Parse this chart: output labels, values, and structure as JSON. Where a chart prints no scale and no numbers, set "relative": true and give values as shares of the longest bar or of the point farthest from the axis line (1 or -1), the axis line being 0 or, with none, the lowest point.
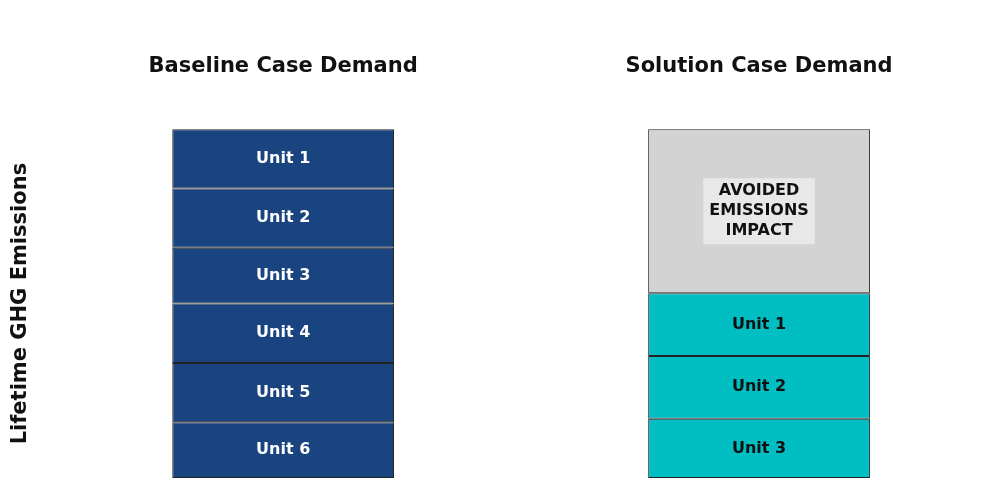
{
  "chart_data": {
    "type": "bar",
    "stacked": true,
    "relative": true,
    "ylabel": "Lifetime GHG Emissions",
    "categories": [
      "Baseline Case Demand",
      "Solution Case Demand"
    ],
    "series": [
      {
        "values": [
          0.16,
          0.17
        ],
        "colors": [
          "#1a4480",
          "#00bec2"
        ]
      },
      {
        "values": [
          0.17,
          0.18
        ],
        "colors": [
          "#1a4480",
          "#00bec2"
        ]
      },
      {
        "values": [
          0.17,
          0.18
        ],
        "colors": [
          "#1a4480",
          "#00bec2"
        ]
      },
      {
        "values": [
          0.16,
          0.47
        ],
        "colors": [
          "#1a4480",
          "#d3d3d3"
        ]
      },
      {
        "values": [
          0.17,
          null
        ],
        "colors": [
          "#1a4480",
          "#1a4480"
        ]
      },
      {
        "values": [
          0.17,
          null
        ],
        "colors": [
          "#1a4480",
          "#1a4480"
        ]
      }
    ],
    "annotations": [
      {
        "text": "Unit 6",
        "x": "Baseline Case Demand",
        "y": 0.16
      },
      {
        "text": "Unit 5",
        "x": "Baseline Case Demand",
        "y": 0.33
      },
      {
        "text": "Unit 4",
        "x": "Baseline Case Demand",
        "y": 0.5
      },
      {
        "text": "Unit 3",
        "x": "Baseline Case Demand",
        "y": 0.66
      },
      {
        "text": "Unit 2",
        "x": "Baseline Case Demand",
        "y": 0.83
      },
      {
        "text": "Unit 1",
        "x": "Baseline Case Demand",
        "y": 1.0
      },
      {
        "text": "Unit 3",
        "x": "Solution Case Demand",
        "y": 0.17
      },
      {
        "text": "Unit 2",
        "x": "Solution Case Demand",
        "y": 0.35
      },
      {
        "text": "Unit 1",
        "x": "Solution Case Demand",
        "y": 0.53
      },
      "AVOIDED EMISSIONS IMPACT"
    ],
    "grid": false,
    "legend": false
  }
}
